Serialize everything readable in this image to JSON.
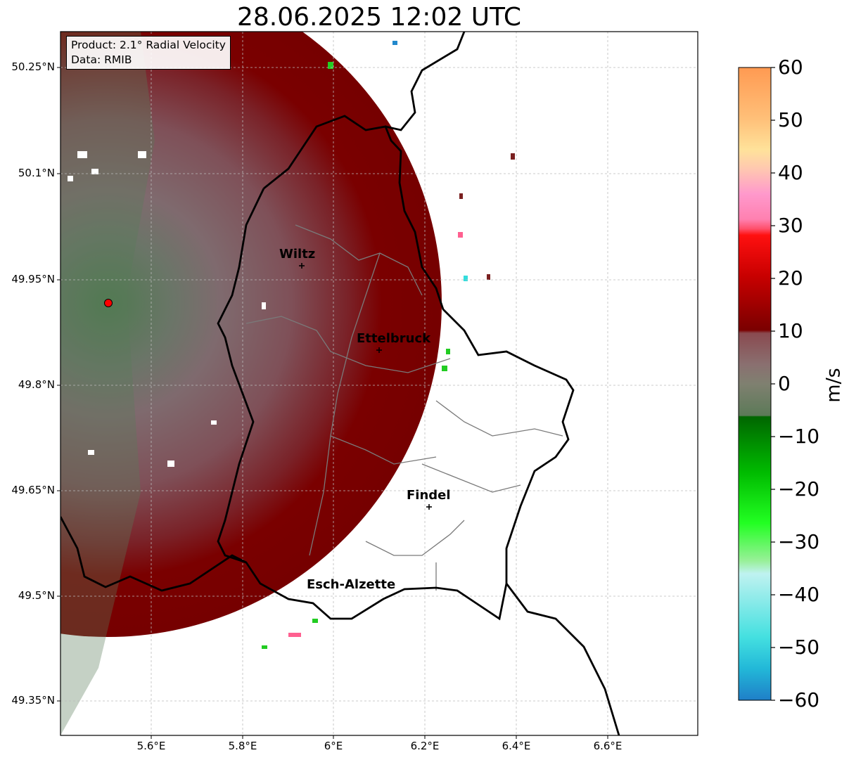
{
  "title": "28.06.2025 12:02 UTC",
  "info": {
    "product": "Product: 2.1° Radial Velocity",
    "data": "Data: RMIB"
  },
  "cities": {
    "wiltz": "Wiltz",
    "ettelbruck": "Ettelbruck",
    "findel": "Findel",
    "esch": "Esch-Alzette"
  },
  "lat_labels": [
    "50.25°N",
    "50.1°N",
    "49.95°N",
    "49.8°N",
    "49.65°N",
    "49.5°N",
    "49.35°N"
  ],
  "lon_labels": [
    "5.6°E",
    "5.8°E",
    "6°E",
    "6.2°E",
    "6.4°E",
    "6.6°E"
  ],
  "colorbar": {
    "unit": "m/s",
    "ticks": [
      "60",
      "50",
      "40",
      "30",
      "20",
      "10",
      "0",
      "−10",
      "−20",
      "−30",
      "−40",
      "−50",
      "−60"
    ],
    "min": -60,
    "max": 60
  },
  "colors": {
    "receding_dark": "#7a0000",
    "receding_mid": "#7d3f44",
    "near_zero": "#7f6a6e",
    "approaching": "#5f7f60",
    "radar_site": "#ff0000"
  }
}
